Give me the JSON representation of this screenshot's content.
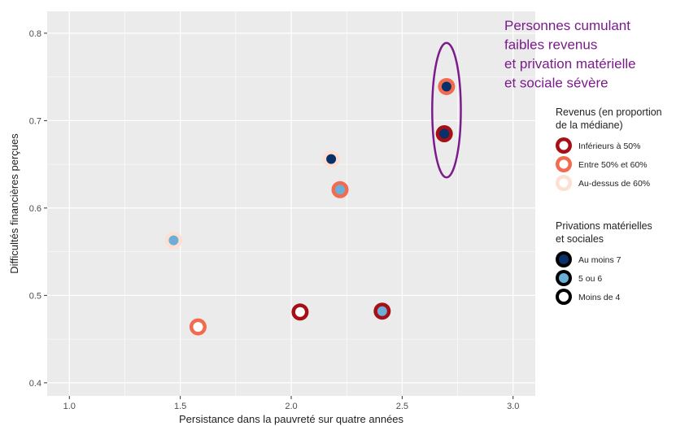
{
  "chart_data": {
    "type": "scatter",
    "xlabel": "Persistance dans la pauvreté sur quatre années",
    "ylabel": "Difficultés financières perçues",
    "xlim": [
      0.9,
      3.1
    ],
    "ylim": [
      0.385,
      0.825
    ],
    "x_ticks": [
      1.0,
      1.5,
      2.0,
      2.5,
      3.0
    ],
    "x_tick_labels": [
      "1.0",
      "1.5",
      "2.0",
      "2.5",
      "3.0"
    ],
    "y_ticks": [
      0.4,
      0.5,
      0.6,
      0.7,
      0.8
    ],
    "y_tick_labels": [
      "0.4",
      "0.5",
      "0.6",
      "0.7",
      "0.8"
    ],
    "grid": true,
    "legend_position": "right",
    "colors": {
      "panel": "#ebebeb",
      "grid": "#ffffff",
      "inferieur_50": "#a50f15",
      "entre_50_60": "#f26b4f",
      "au_dessus_60": "#fde0d2",
      "au_moins_7": "#08306b",
      "cinq_ou_six": "#6baed6",
      "moins_de_4": "#ffffff",
      "annotation": "#7b1c8c"
    },
    "points": [
      {
        "x": 2.7,
        "y": 0.739,
        "revenus": "entre_50_60",
        "privations": "au_moins_7"
      },
      {
        "x": 2.69,
        "y": 0.685,
        "revenus": "inferieur_50",
        "privations": "au_moins_7"
      },
      {
        "x": 2.18,
        "y": 0.656,
        "revenus": "au_dessus_60",
        "privations": "au_moins_7"
      },
      {
        "x": 2.22,
        "y": 0.621,
        "revenus": "entre_50_60",
        "privations": "cinq_ou_six"
      },
      {
        "x": 1.47,
        "y": 0.563,
        "revenus": "au_dessus_60",
        "privations": "cinq_ou_six"
      },
      {
        "x": 2.04,
        "y": 0.481,
        "revenus": "inferieur_50",
        "privations": "moins_de_4"
      },
      {
        "x": 2.41,
        "y": 0.482,
        "revenus": "inferieur_50",
        "privations": "cinq_ou_six"
      },
      {
        "x": 1.58,
        "y": 0.464,
        "revenus": "entre_50_60",
        "privations": "moins_de_4"
      }
    ],
    "annotation": {
      "lines": [
        "Personnes cumulant",
        "faibles revenus",
        "et privation matérielle",
        "et sociale sévère"
      ],
      "ellipse_center": [
        2.7,
        0.712
      ],
      "ellipse_radius": [
        0.215,
        0.077
      ]
    },
    "legends": [
      {
        "title_lines": [
          "Revenus (en proportion",
          "de la médiane)"
        ],
        "entries": [
          {
            "key": "inferieur_50",
            "label": "Inférieurs à 50%"
          },
          {
            "key": "entre_50_60",
            "label": "Entre 50% et 60%"
          },
          {
            "key": "au_dessus_60",
            "label": "Au-dessus de 60%"
          }
        ]
      },
      {
        "title_lines": [
          "Privations matérielles",
          "et sociales"
        ],
        "entries": [
          {
            "key": "au_moins_7",
            "label": "Au moins 7"
          },
          {
            "key": "cinq_ou_six",
            "label": "5 ou 6"
          },
          {
            "key": "moins_de_4",
            "label": "Moins de 4"
          }
        ]
      }
    ]
  }
}
